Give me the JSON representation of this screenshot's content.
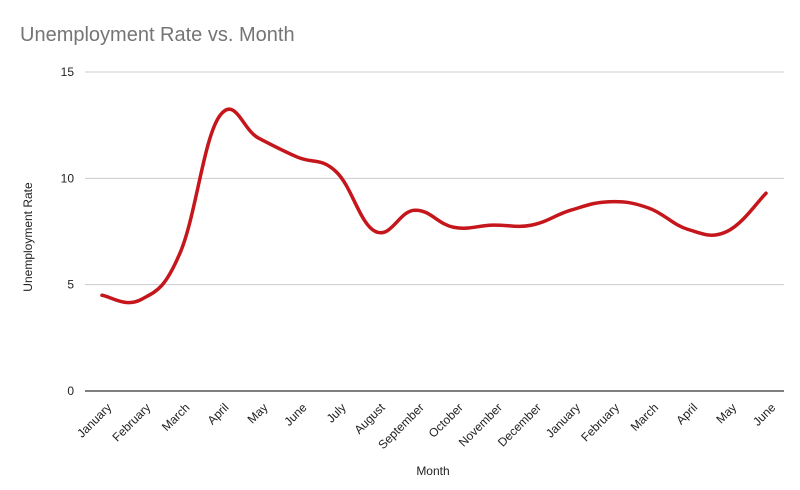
{
  "chart_data": {
    "type": "line",
    "title": "Unemployment Rate vs. Month",
    "xlabel": "Month",
    "ylabel": "Unemployment Rate",
    "categories": [
      "January",
      "February",
      "March",
      "April",
      "May",
      "June",
      "July",
      "August",
      "September",
      "October",
      "November",
      "December",
      "January",
      "February",
      "March",
      "April",
      "May",
      "June"
    ],
    "series": [
      {
        "values": [
          4.5,
          4.3,
          6.5,
          12.9,
          11.9,
          11.0,
          10.3,
          7.5,
          8.5,
          7.7,
          7.8,
          7.8,
          8.5,
          8.9,
          8.6,
          7.6,
          7.5,
          9.3
        ],
        "color": "#c5161c"
      }
    ],
    "ylim": [
      0,
      15
    ],
    "yticks": [
      0,
      5,
      10,
      15
    ],
    "grid": true,
    "legend": "none",
    "colors": {
      "grid": "#cccccc",
      "axis": "#333333",
      "title": "#757575"
    }
  }
}
